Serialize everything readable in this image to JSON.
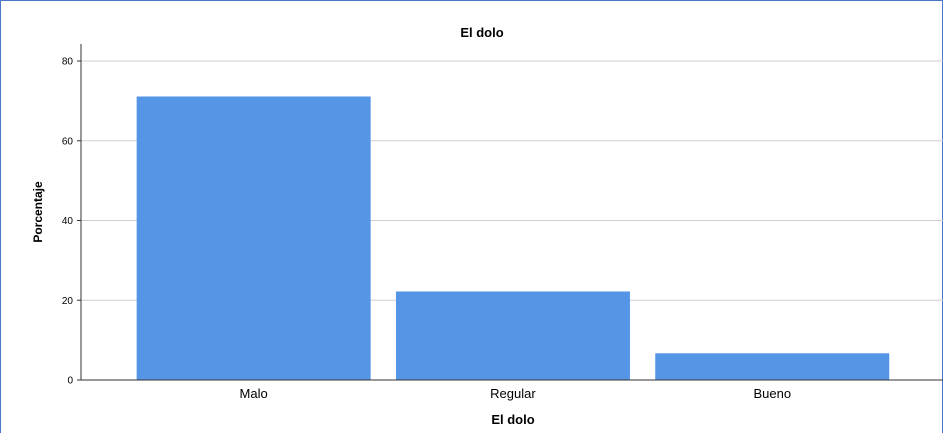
{
  "chart_data": {
    "type": "bar",
    "title": "El dolo",
    "xlabel": "El dolo",
    "ylabel": "Porcentaje",
    "categories": [
      "Malo",
      "Regular",
      "Bueno"
    ],
    "values": [
      71.1,
      22.2,
      6.7
    ],
    "ylim": [
      0,
      80
    ],
    "yticks": [
      0,
      20,
      40,
      60,
      80
    ],
    "grid": true,
    "bar_color": "#5595e6",
    "grid_color": "#cfcfcf"
  }
}
